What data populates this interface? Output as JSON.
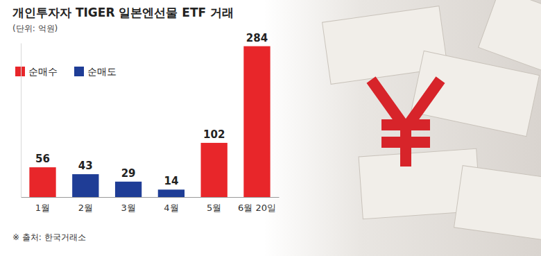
{
  "chart_data": {
    "type": "bar",
    "title": "개인투자자 TIGER 일본엔선물 ETF 거래",
    "subtitle": "(단위: 억원)",
    "source": "※ 출처: 한국거래소",
    "categories": [
      "1월",
      "2월",
      "3월",
      "4월",
      "5월",
      "6월 20일"
    ],
    "series": [
      {
        "name": "순매수",
        "color": "#e8262a",
        "values": [
          56,
          null,
          null,
          null,
          102,
          284
        ]
      },
      {
        "name": "순매도",
        "color": "#1f3d96",
        "values": [
          null,
          43,
          29,
          14,
          null,
          null
        ]
      }
    ],
    "ylim": [
      0,
      290
    ],
    "tick_labels": "x",
    "data_labels": true,
    "legend": "top-left",
    "grid": false
  }
}
